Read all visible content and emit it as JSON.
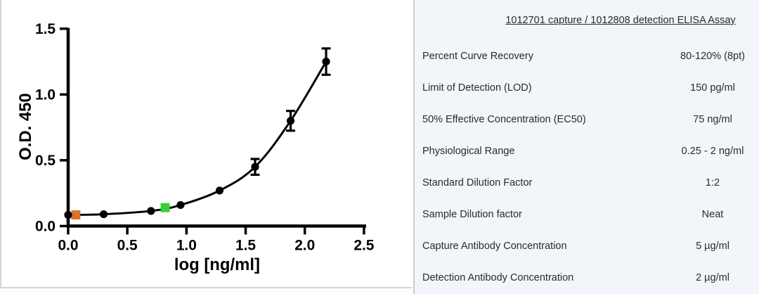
{
  "panel": {
    "title": "1012701 capture / 1012808 detection ELISA Assay",
    "background": "#f2f5f9",
    "rows": [
      {
        "label": "Percent Curve Recovery",
        "value": "80-120% (8pt)"
      },
      {
        "label": "Limit of Detection (LOD)",
        "value": "150 pg/ml"
      },
      {
        "label": "50% Effective Concentration (EC50)",
        "value": "75 ng/ml"
      },
      {
        "label": "Physiological Range",
        "value": "0.25 - 2 ng/ml"
      },
      {
        "label": "Standard Dilution Factor",
        "value": "1:2"
      },
      {
        "label": "Sample Dilution factor",
        "value": "Neat"
      },
      {
        "label": "Capture Antibody Concentration",
        "value": "5 µg/ml"
      },
      {
        "label": "Detection Antibody Concentration",
        "value": "2 µg/ml"
      }
    ]
  },
  "chart_data": {
    "type": "scatter",
    "title": "",
    "xlabel": "log [ng/ml]",
    "ylabel": "O.D. 450",
    "xlim": [
      0,
      2.5
    ],
    "ylim": [
      0,
      1.5
    ],
    "x_ticks": [
      0,
      0.5,
      1.0,
      1.5,
      2.0,
      2.5
    ],
    "y_ticks": [
      0,
      0.5,
      1.0,
      1.5
    ],
    "grid": false,
    "legend": false,
    "line_color": "#000000",
    "point_color": "#000000",
    "axis_color": "#000000",
    "points": [
      {
        "x": 0.0,
        "y": 0.085,
        "err": 0
      },
      {
        "x": 0.3,
        "y": 0.09,
        "err": 0
      },
      {
        "x": 0.7,
        "y": 0.115,
        "err": 0
      },
      {
        "x": 0.95,
        "y": 0.16,
        "err": 0
      },
      {
        "x": 1.28,
        "y": 0.27,
        "err": 0
      },
      {
        "x": 1.58,
        "y": 0.45,
        "err": 0.06
      },
      {
        "x": 1.88,
        "y": 0.8,
        "err": 0.075
      },
      {
        "x": 2.18,
        "y": 1.25,
        "err": 0.1
      }
    ],
    "special_markers": [
      {
        "name": "orange-square-marker",
        "x": 0.065,
        "y": 0.085,
        "color": "#d8732a"
      },
      {
        "name": "green-square-marker",
        "x": 0.82,
        "y": 0.14,
        "color": "#35d035"
      }
    ]
  }
}
